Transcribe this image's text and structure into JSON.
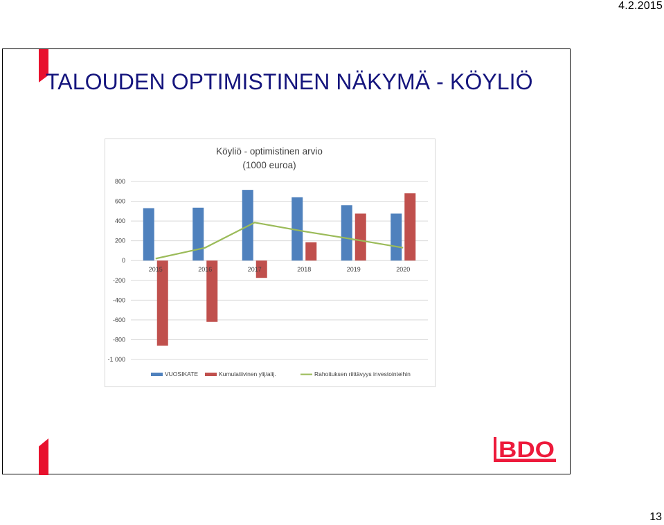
{
  "header": {
    "date": "4.2.2015"
  },
  "footer": {
    "page_number": "13"
  },
  "slide": {
    "title": "TALOUDEN OPTIMISTINEN NÄKYMÄ - KÖYLIÖ"
  },
  "logo": {
    "text": "BDO",
    "color": "#ed1a3b"
  },
  "colors": {
    "accent": "#e8112d",
    "title": "#15157d",
    "series_blue": "#4f81bd",
    "series_red": "#c0504d",
    "series_green": "#9bbb59"
  },
  "chart_data": {
    "type": "bar",
    "title_lines": [
      "Köyliö - optimistinen arvio",
      "(1000 euroa)"
    ],
    "categories": [
      "2015",
      "2016",
      "2017",
      "2018",
      "2019",
      "2020"
    ],
    "y_ticks": [
      800,
      600,
      400,
      200,
      0,
      -200,
      -400,
      -600,
      -800,
      -1000
    ],
    "y_tick_labels": [
      "800",
      "600",
      "400",
      "200",
      "0",
      "-200",
      "-400",
      "-600",
      "-800",
      "-1 000"
    ],
    "ylim": [
      -1000,
      800
    ],
    "grid": true,
    "legend_position": "bottom",
    "series": [
      {
        "name": "VUOSIKATE",
        "kind": "bar",
        "color": "#4f81bd",
        "values": [
          530,
          535,
          715,
          640,
          560,
          475
        ]
      },
      {
        "name": "Kumulatiivinen ylij/alij.",
        "kind": "bar",
        "color": "#c0504d",
        "values": [
          -860,
          -620,
          -175,
          185,
          475,
          680
        ]
      },
      {
        "name": "Rahoituksen riittävyys investointeihin",
        "kind": "line",
        "color": "#9bbb59",
        "values": [
          20,
          130,
          385,
          295,
          215,
          130
        ]
      }
    ]
  }
}
